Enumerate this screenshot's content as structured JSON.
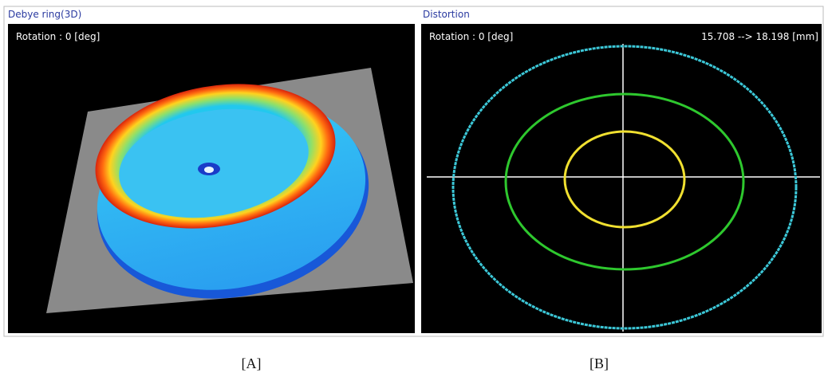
{
  "panels": [
    {
      "title": "Debye ring(3D)",
      "rotation": "Rotation : 0 [deg]",
      "caption": "[A]"
    },
    {
      "title": "Distortion",
      "rotation": "Rotation : 0 [deg]",
      "range": "15.708 --> 18.198 [mm]",
      "caption": "[B]"
    }
  ]
}
